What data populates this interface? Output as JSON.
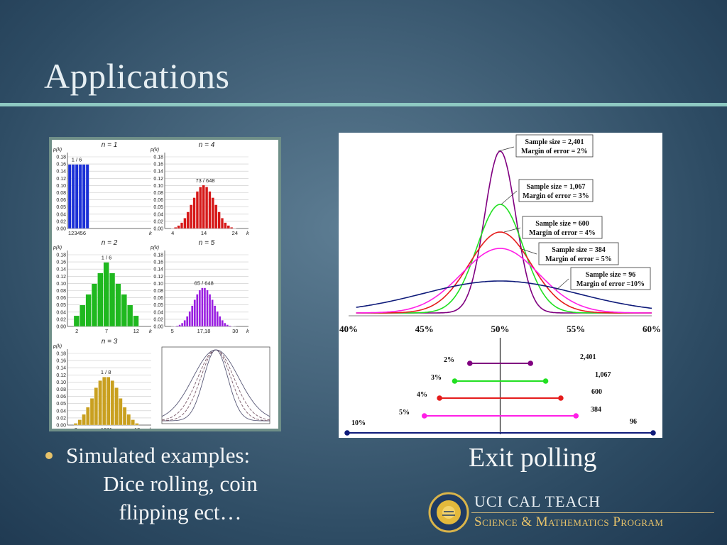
{
  "slide": {
    "title": "Applications",
    "bullet_lines": [
      "Simulated examples:",
      "Dice rolling, coin",
      "flipping ect…"
    ],
    "exit_caption": "Exit polling"
  },
  "logo": {
    "line1": "UCI CAL TEACH",
    "line2": "Science & Mathematics Program"
  },
  "colors": {
    "background": "#3e5c73",
    "title_rule": "#8ec9c2",
    "bullet_dot": "#e8c36a",
    "n1": "#1a2fd6",
    "n2": "#1fb81f",
    "n3": "#c9a020",
    "n4": "#d61919",
    "n5": "#9a1fe0"
  },
  "chart_data": [
    {
      "type": "bar",
      "title": "n = 1",
      "ylabel": "p(k)",
      "xlabel": "k",
      "yticks": [
        "0.18",
        "0.16",
        "0.14",
        "0.12",
        "0.10",
        "0.08",
        "0.06",
        "0.05",
        "0.04",
        "0.02",
        "0.00"
      ],
      "xticks": [
        "123456"
      ],
      "annotation": "1 / 6",
      "categories": [
        1,
        2,
        3,
        4,
        5,
        6
      ],
      "values": [
        0.1667,
        0.1667,
        0.1667,
        0.1667,
        0.1667,
        0.1667
      ],
      "ylim": [
        0,
        0.19
      ]
    },
    {
      "type": "bar",
      "title": "n = 2",
      "ylabel": "p(k)",
      "xlabel": "k",
      "yticks": [
        "0.18",
        "0.16",
        "0.14",
        "0.12",
        "0.10",
        "0.08",
        "0.06",
        "0.05",
        "0.04",
        "0.02",
        "0.00"
      ],
      "xticks": [
        "2",
        "7",
        "12"
      ],
      "annotation": "1 / 6",
      "categories": [
        2,
        3,
        4,
        5,
        6,
        7,
        8,
        9,
        10,
        11,
        12
      ],
      "values": [
        0.0278,
        0.0556,
        0.0833,
        0.1111,
        0.1389,
        0.1667,
        0.1389,
        0.1111,
        0.0833,
        0.0556,
        0.0278
      ],
      "ylim": [
        0,
        0.19
      ]
    },
    {
      "type": "bar",
      "title": "n = 3",
      "ylabel": "p(k)",
      "xlabel": "k",
      "yticks": [
        "0.18",
        "0.16",
        "0.14",
        "0.12",
        "0.10",
        "0.08",
        "0.06",
        "0.05",
        "0.04",
        "0.02",
        "0.00"
      ],
      "xticks": [
        "3",
        "1011",
        "18"
      ],
      "annotation": "1 / 8",
      "categories": [
        3,
        4,
        5,
        6,
        7,
        8,
        9,
        10,
        11,
        12,
        13,
        14,
        15,
        16,
        17,
        18
      ],
      "values": [
        0.0046,
        0.0139,
        0.0278,
        0.0463,
        0.0694,
        0.0972,
        0.1157,
        0.125,
        0.125,
        0.1157,
        0.0972,
        0.0694,
        0.0463,
        0.0278,
        0.0139,
        0.0046
      ],
      "ylim": [
        0,
        0.19
      ]
    },
    {
      "type": "bar",
      "title": "n = 4",
      "ylabel": "p(k)",
      "xlabel": "k",
      "yticks": [
        "0.18",
        "0.16",
        "0.14",
        "0.12",
        "0.10",
        "0.08",
        "0.06",
        "0.05",
        "0.04",
        "0.02",
        "0.00"
      ],
      "xticks": [
        "4",
        "14",
        "24"
      ],
      "annotation": "73 / 648",
      "categories": [
        4,
        5,
        6,
        7,
        8,
        9,
        10,
        11,
        12,
        13,
        14,
        15,
        16,
        17,
        18,
        19,
        20,
        21,
        22,
        23,
        24
      ],
      "values": [
        0.0008,
        0.0031,
        0.0077,
        0.0154,
        0.027,
        0.0432,
        0.0617,
        0.0802,
        0.0965,
        0.108,
        0.1127,
        0.108,
        0.0965,
        0.0802,
        0.0617,
        0.0432,
        0.027,
        0.0154,
        0.0077,
        0.0031,
        0.0008
      ],
      "ylim": [
        0,
        0.19
      ]
    },
    {
      "type": "bar",
      "title": "n = 5",
      "ylabel": "p(k)",
      "xlabel": "k",
      "yticks": [
        "0.18",
        "0.16",
        "0.14",
        "0.12",
        "0.10",
        "0.08",
        "0.06",
        "0.05",
        "0.04",
        "0.02",
        "0.00"
      ],
      "xticks": [
        "5",
        "17,18",
        "30"
      ],
      "annotation": "65 / 648",
      "categories": [
        5,
        6,
        7,
        8,
        9,
        10,
        11,
        12,
        13,
        14,
        15,
        16,
        17,
        18,
        19,
        20,
        21,
        22,
        23,
        24,
        25,
        26,
        27,
        28,
        29,
        30
      ],
      "values": [
        0.0001,
        0.0006,
        0.0019,
        0.0045,
        0.009,
        0.0162,
        0.0264,
        0.0392,
        0.054,
        0.0694,
        0.0837,
        0.0945,
        0.1003,
        0.1003,
        0.0945,
        0.0837,
        0.0694,
        0.054,
        0.0392,
        0.0264,
        0.0162,
        0.009,
        0.0045,
        0.0019,
        0.0006,
        0.0001
      ],
      "ylim": [
        0,
        0.19
      ]
    },
    {
      "type": "line",
      "title": "",
      "series": [
        {
          "sd": 1.0,
          "style": "solid"
        },
        {
          "sd": 1.25,
          "style": "dashed"
        },
        {
          "sd": 1.5,
          "style": "dashed"
        },
        {
          "sd": 1.9,
          "style": "solid"
        }
      ]
    },
    {
      "type": "line",
      "xlabel": "",
      "ylabel": "",
      "xticks": [
        "40%",
        "45%",
        "50%",
        "55%",
        "60%"
      ],
      "xlim": [
        40,
        60
      ],
      "series": [
        {
          "label_lines": [
            "Sample size = 2,401",
            "Margin of error = 2%"
          ],
          "moe": 2,
          "sample": "2,401",
          "color": "#800080"
        },
        {
          "label_lines": [
            "Sample size = 1,067",
            "Margin of error = 3%"
          ],
          "moe": 3,
          "sample": "1,067",
          "color": "#22e022"
        },
        {
          "label_lines": [
            "Sample size = 600",
            "Margin of error = 4%"
          ],
          "moe": 4,
          "sample": "600",
          "color": "#e51c1c"
        },
        {
          "label_lines": [
            "Sample size = 384",
            "Margin of error = 5%"
          ],
          "moe": 5,
          "sample": "384",
          "color": "#ff1fe6"
        },
        {
          "label_lines": [
            "Sample size = 96",
            "Margin of error =10%"
          ],
          "moe": 10,
          "sample": "96",
          "color": "#0f1b7a"
        }
      ],
      "interval_labels": [
        "2%",
        "3%",
        "4%",
        "5%",
        "10%"
      ]
    }
  ]
}
